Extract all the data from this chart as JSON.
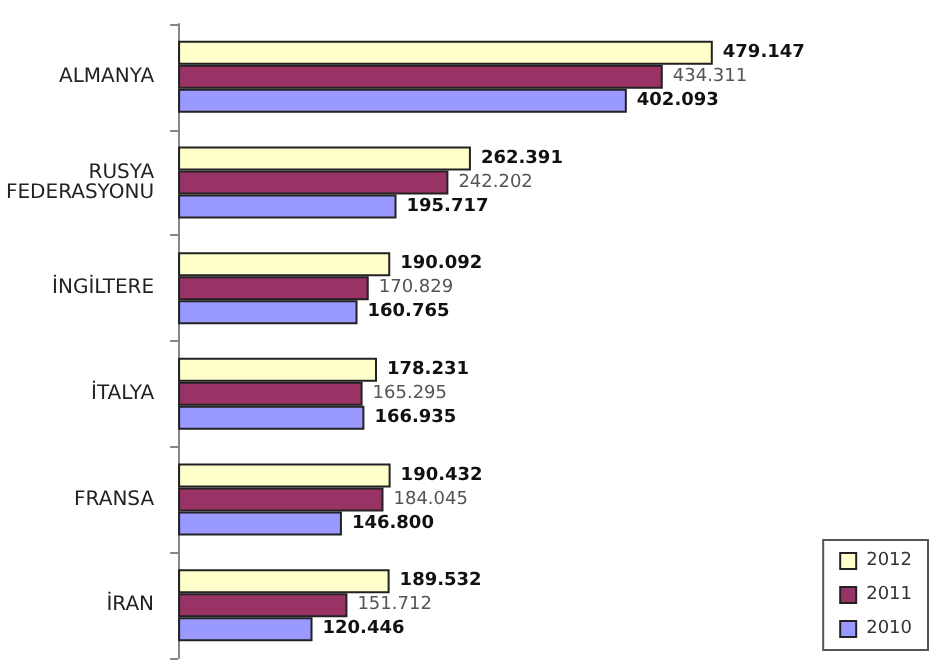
{
  "chart_data": {
    "type": "bar",
    "orientation": "horizontal",
    "categories": [
      "ALMANYA",
      "RUSYA\nFEDERASYONU",
      "İNGİLTERE",
      "İTALYA",
      "FRANSA",
      "İRAN"
    ],
    "series": [
      {
        "name": "2012",
        "color": "#ffffcc",
        "values": [
          479147,
          262391,
          190092,
          178231,
          190432,
          189532
        ],
        "value_labels": [
          "479.147",
          "262.391",
          "190.092",
          "178.231",
          "190.432",
          "189.532"
        ]
      },
      {
        "name": "2011",
        "color": "#993366",
        "values": [
          434311,
          242202,
          170829,
          165295,
          184045,
          151712
        ],
        "value_labels": [
          "434.311",
          "242.202",
          "170.829",
          "165.295",
          "184.045",
          "151.712"
        ]
      },
      {
        "name": "2010",
        "color": "#9999ff",
        "values": [
          402093,
          195717,
          160765,
          166935,
          146800,
          120446
        ],
        "value_labels": [
          "402.093",
          "195.717",
          "160.765",
          "166.935",
          "146.800",
          "120.446"
        ]
      }
    ],
    "legend": "bottom right",
    "grid": false
  }
}
